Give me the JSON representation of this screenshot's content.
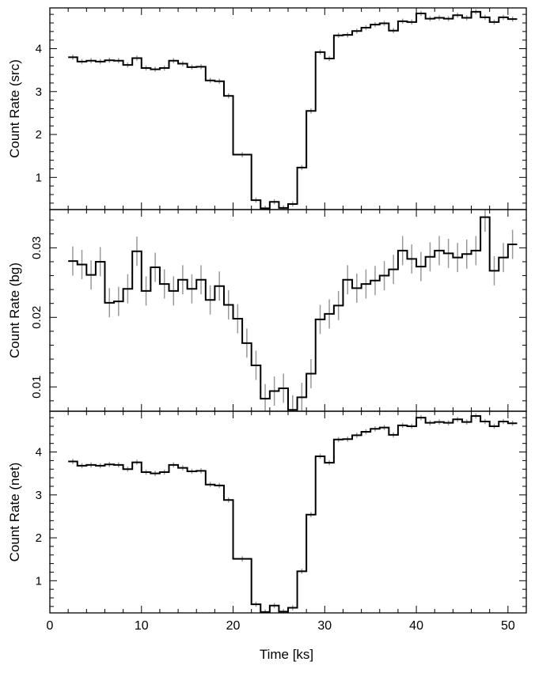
{
  "chart_data": {
    "type": "line",
    "xlabel": "Time [ks]",
    "xlim": [
      0,
      52
    ],
    "x_ticks": [
      0,
      10,
      20,
      30,
      40,
      50
    ],
    "line_color": "#000000",
    "error_bar_color": "#999999",
    "panels": [
      {
        "ylabel": "Count Rate (src)",
        "ylim": [
          0.25,
          4.95
        ],
        "y_ticks": [
          1,
          2,
          3,
          4
        ],
        "y_tick_labels": [
          "1",
          "2",
          "3",
          "4"
        ],
        "tick_label_rotation": 0,
        "series": [
          {
            "bin_start": [
              2.0,
              3.0,
              4.0,
              5.0,
              6.0,
              7.0,
              8.0,
              9.0,
              10.0,
              11.0,
              12.0,
              13.0,
              14.0,
              15.0,
              16.0,
              17.0,
              18.0,
              19.0,
              20.0,
              22.0,
              23.0,
              24.0,
              25.0,
              26.0,
              27.0,
              28.0,
              29.0,
              30.0,
              31.0,
              32.0,
              33.0,
              34.0,
              35.0,
              36.0,
              37.0,
              38.0,
              39.0,
              40.0,
              41.0,
              42.0,
              43.0,
              44.0,
              45.0,
              46.0,
              47.0,
              48.0,
              49.0,
              50.0
            ],
            "bin_end": [
              3.0,
              4.0,
              5.0,
              6.0,
              7.0,
              8.0,
              9.0,
              10.0,
              11.0,
              12.0,
              13.0,
              14.0,
              15.0,
              16.0,
              17.0,
              18.0,
              19.0,
              20.0,
              22.0,
              23.0,
              24.0,
              25.0,
              26.0,
              27.0,
              28.0,
              29.0,
              30.0,
              31.0,
              32.0,
              33.0,
              34.0,
              35.0,
              36.0,
              37.0,
              38.0,
              39.0,
              40.0,
              41.0,
              42.0,
              43.0,
              44.0,
              45.0,
              46.0,
              47.0,
              48.0,
              49.0,
              50.0,
              51.0
            ],
            "values": [
              3.8,
              3.7,
              3.72,
              3.7,
              3.73,
              3.72,
              3.62,
              3.78,
              3.55,
              3.52,
              3.55,
              3.72,
              3.65,
              3.57,
              3.58,
              3.26,
              3.24,
              2.9,
              1.53,
              0.47,
              0.28,
              0.43,
              0.29,
              0.38,
              1.23,
              2.55,
              3.92,
              3.77,
              4.31,
              4.32,
              4.41,
              4.49,
              4.56,
              4.59,
              4.42,
              4.64,
              4.62,
              4.82,
              4.7,
              4.72,
              4.7,
              4.78,
              4.72,
              4.86,
              4.73,
              4.62,
              4.73,
              4.69
            ],
            "errors": [
              0.06,
              0.06,
              0.06,
              0.06,
              0.06,
              0.06,
              0.06,
              0.06,
              0.06,
              0.06,
              0.06,
              0.06,
              0.06,
              0.06,
              0.06,
              0.06,
              0.06,
              0.06,
              0.06,
              0.06,
              0.06,
              0.06,
              0.06,
              0.06,
              0.06,
              0.06,
              0.06,
              0.06,
              0.06,
              0.06,
              0.06,
              0.06,
              0.06,
              0.06,
              0.06,
              0.06,
              0.06,
              0.06,
              0.06,
              0.06,
              0.06,
              0.06,
              0.06,
              0.06,
              0.06,
              0.06,
              0.06,
              0.06
            ]
          }
        ]
      },
      {
        "ylabel": "Count Rate (bg)",
        "ylim": [
          0.0065,
          0.0355
        ],
        "y_ticks": [
          0.01,
          0.02,
          0.03
        ],
        "y_tick_labels": [
          "0.01",
          "0.02",
          "0.03"
        ],
        "tick_label_rotation": -90,
        "series": [
          {
            "bin_start": [
              2.0,
              3.0,
              4.0,
              5.0,
              6.0,
              7.0,
              8.0,
              9.0,
              10.0,
              11.0,
              12.0,
              13.0,
              14.0,
              15.0,
              16.0,
              17.0,
              18.0,
              19.0,
              20.0,
              21.0,
              22.0,
              23.0,
              24.0,
              25.0,
              26.0,
              27.0,
              28.0,
              29.0,
              30.0,
              31.0,
              32.0,
              33.0,
              34.0,
              35.0,
              36.0,
              37.0,
              38.0,
              39.0,
              40.0,
              41.0,
              42.0,
              43.0,
              44.0,
              45.0,
              46.0,
              47.0,
              48.0,
              49.0,
              50.0
            ],
            "bin_end": [
              3.0,
              4.0,
              5.0,
              6.0,
              7.0,
              8.0,
              9.0,
              10.0,
              11.0,
              12.0,
              13.0,
              14.0,
              15.0,
              16.0,
              17.0,
              18.0,
              19.0,
              20.0,
              21.0,
              22.0,
              23.0,
              24.0,
              25.0,
              26.0,
              27.0,
              28.0,
              29.0,
              30.0,
              31.0,
              32.0,
              33.0,
              34.0,
              35.0,
              36.0,
              37.0,
              38.0,
              39.0,
              40.0,
              41.0,
              42.0,
              43.0,
              44.0,
              45.0,
              46.0,
              47.0,
              48.0,
              49.0,
              50.0,
              51.0
            ],
            "values": [
              0.0281,
              0.0276,
              0.0261,
              0.028,
              0.0221,
              0.0223,
              0.0241,
              0.0295,
              0.0238,
              0.0272,
              0.0248,
              0.0238,
              0.0254,
              0.0241,
              0.0254,
              0.0225,
              0.0245,
              0.0218,
              0.0198,
              0.0163,
              0.0131,
              0.0083,
              0.0094,
              0.0098,
              0.0067,
              0.0085,
              0.0119,
              0.0197,
              0.0205,
              0.0217,
              0.0254,
              0.0242,
              0.0248,
              0.0253,
              0.026,
              0.0269,
              0.0296,
              0.0284,
              0.0273,
              0.0287,
              0.0296,
              0.0292,
              0.0286,
              0.0291,
              0.0296,
              0.0344,
              0.0267,
              0.0286,
              0.0305
            ],
            "errors": [
              0.0021,
              0.0021,
              0.0021,
              0.0021,
              0.0021,
              0.0021,
              0.0021,
              0.0021,
              0.0021,
              0.0021,
              0.0021,
              0.0021,
              0.0021,
              0.0021,
              0.0021,
              0.0021,
              0.0021,
              0.0021,
              0.0021,
              0.0021,
              0.0021,
              0.0021,
              0.0021,
              0.0021,
              0.0021,
              0.0021,
              0.0021,
              0.0021,
              0.0021,
              0.0021,
              0.0021,
              0.0021,
              0.0021,
              0.0021,
              0.0021,
              0.0021,
              0.0021,
              0.0021,
              0.0021,
              0.0021,
              0.0021,
              0.0021,
              0.0021,
              0.0021,
              0.0021,
              0.0021,
              0.0021,
              0.0021,
              0.0021
            ]
          }
        ]
      },
      {
        "ylabel": "Count Rate (net)",
        "ylim": [
          0.25,
          4.95
        ],
        "y_ticks": [
          1,
          2,
          3,
          4
        ],
        "y_tick_labels": [
          "1",
          "2",
          "3",
          "4"
        ],
        "tick_label_rotation": 0,
        "series": [
          {
            "bin_start": [
              2.0,
              3.0,
              4.0,
              5.0,
              6.0,
              7.0,
              8.0,
              9.0,
              10.0,
              11.0,
              12.0,
              13.0,
              14.0,
              15.0,
              16.0,
              17.0,
              18.0,
              19.0,
              20.0,
              22.0,
              23.0,
              24.0,
              25.0,
              26.0,
              27.0,
              28.0,
              29.0,
              30.0,
              31.0,
              32.0,
              33.0,
              34.0,
              35.0,
              36.0,
              37.0,
              38.0,
              39.0,
              40.0,
              41.0,
              42.0,
              43.0,
              44.0,
              45.0,
              46.0,
              47.0,
              48.0,
              49.0,
              50.0
            ],
            "bin_end": [
              3.0,
              4.0,
              5.0,
              6.0,
              7.0,
              8.0,
              9.0,
              10.0,
              11.0,
              12.0,
              13.0,
              14.0,
              15.0,
              16.0,
              17.0,
              18.0,
              19.0,
              20.0,
              22.0,
              23.0,
              24.0,
              25.0,
              26.0,
              27.0,
              28.0,
              29.0,
              30.0,
              31.0,
              32.0,
              33.0,
              34.0,
              35.0,
              36.0,
              37.0,
              38.0,
              39.0,
              40.0,
              41.0,
              42.0,
              43.0,
              44.0,
              45.0,
              46.0,
              47.0,
              48.0,
              49.0,
              50.0,
              51.0
            ],
            "values": [
              3.78,
              3.68,
              3.7,
              3.68,
              3.71,
              3.7,
              3.6,
              3.76,
              3.53,
              3.5,
              3.53,
              3.7,
              3.63,
              3.55,
              3.56,
              3.24,
              3.22,
              2.88,
              1.51,
              0.45,
              0.27,
              0.42,
              0.28,
              0.37,
              1.22,
              2.54,
              3.9,
              3.75,
              4.29,
              4.3,
              4.39,
              4.47,
              4.54,
              4.57,
              4.4,
              4.62,
              4.6,
              4.8,
              4.68,
              4.7,
              4.68,
              4.76,
              4.7,
              4.84,
              4.71,
              4.6,
              4.71,
              4.67
            ],
            "errors": [
              0.06,
              0.06,
              0.06,
              0.06,
              0.06,
              0.06,
              0.06,
              0.06,
              0.06,
              0.06,
              0.06,
              0.06,
              0.06,
              0.06,
              0.06,
              0.06,
              0.06,
              0.06,
              0.06,
              0.06,
              0.06,
              0.06,
              0.06,
              0.06,
              0.06,
              0.06,
              0.06,
              0.06,
              0.06,
              0.06,
              0.06,
              0.06,
              0.06,
              0.06,
              0.06,
              0.06,
              0.06,
              0.06,
              0.06,
              0.06,
              0.06,
              0.06,
              0.06,
              0.06,
              0.06,
              0.06,
              0.06,
              0.06
            ]
          }
        ]
      }
    ]
  }
}
